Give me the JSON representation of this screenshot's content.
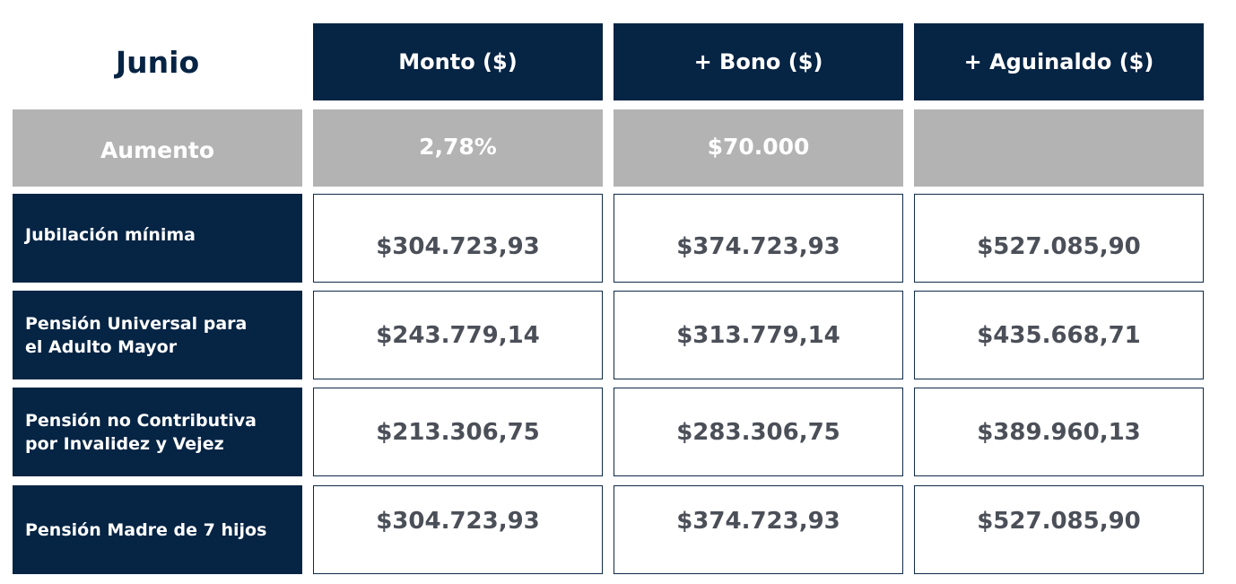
{
  "table": {
    "corner_title": "Junio",
    "columns": [
      "Monto ($)",
      "+ Bono ($)",
      "+ Aguinaldo ($)"
    ],
    "increase_row": {
      "label": "Aumento",
      "values": [
        "2,78%",
        "$70.000",
        ""
      ]
    },
    "rows": [
      {
        "label": "Jubilación mínima",
        "values": [
          "$304.723,93",
          "$374.723,93",
          "$527.085,90"
        ]
      },
      {
        "label": "Pensión Universal para el Adulto Mayor",
        "values": [
          "$243.779,14",
          "$313.779,14",
          "$435.668,71"
        ]
      },
      {
        "label": "Pensión no Contributiva por Invalidez y Vejez",
        "values": [
          "$213.306,75",
          "$283.306,75",
          "$389.960,13"
        ]
      },
      {
        "label": "Pensión Madre de 7 hijos",
        "values": [
          "$304.723,93",
          "$374.723,93",
          "$527.085,90"
        ]
      }
    ]
  },
  "colors": {
    "navy": "#062444",
    "gray": "#b3b3b3",
    "value_text": "#4b4f58"
  }
}
